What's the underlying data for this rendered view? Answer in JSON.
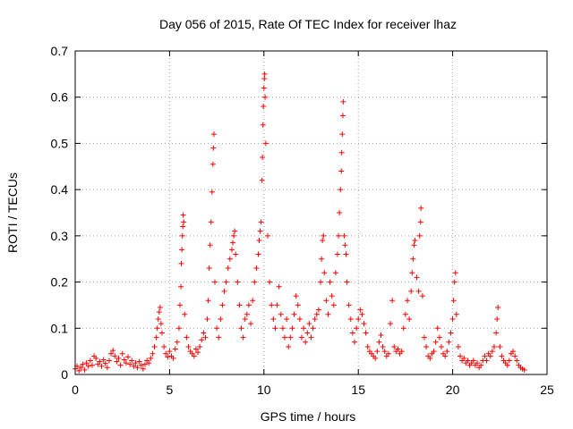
{
  "chart_data": {
    "type": "scatter",
    "title": "Day 056 of 2015, Rate Of TEC Index for receiver lhaz",
    "xlabel": "GPS time / hours",
    "ylabel": "ROTI / TECUs",
    "xlim": [
      0,
      25
    ],
    "ylim": [
      0,
      0.7
    ],
    "xticks": [
      0,
      5,
      10,
      15,
      20,
      25
    ],
    "xtick_labels": [
      "0",
      "5",
      "10",
      "15",
      "20",
      "25"
    ],
    "yticks": [
      0,
      0.1,
      0.2,
      0.3,
      0.4,
      0.5,
      0.6,
      0.7
    ],
    "ytick_labels": [
      "0",
      "0.1",
      "0.2",
      "0.3",
      "0.4",
      "0.5",
      "0.6",
      "0.7"
    ],
    "grid": true,
    "marker": "+",
    "color": "#ff0000",
    "series": [
      {
        "name": "ROTI",
        "points": [
          [
            0.0,
            0.012
          ],
          [
            0.1,
            0.018
          ],
          [
            0.2,
            0.008
          ],
          [
            0.3,
            0.015
          ],
          [
            0.4,
            0.022
          ],
          [
            0.5,
            0.01
          ],
          [
            0.6,
            0.025
          ],
          [
            0.7,
            0.018
          ],
          [
            0.8,
            0.03
          ],
          [
            0.9,
            0.02
          ],
          [
            1.0,
            0.04
          ],
          [
            1.1,
            0.035
          ],
          [
            1.2,
            0.022
          ],
          [
            1.3,
            0.028
          ],
          [
            1.4,
            0.018
          ],
          [
            1.5,
            0.032
          ],
          [
            1.6,
            0.024
          ],
          [
            1.7,
            0.015
          ],
          [
            1.8,
            0.03
          ],
          [
            1.9,
            0.045
          ],
          [
            2.0,
            0.052
          ],
          [
            2.1,
            0.04
          ],
          [
            2.2,
            0.028
          ],
          [
            2.3,
            0.035
          ],
          [
            2.4,
            0.02
          ],
          [
            2.5,
            0.045
          ],
          [
            2.6,
            0.032
          ],
          [
            2.7,
            0.025
          ],
          [
            2.8,
            0.038
          ],
          [
            2.9,
            0.022
          ],
          [
            3.0,
            0.03
          ],
          [
            3.1,
            0.018
          ],
          [
            3.2,
            0.025
          ],
          [
            3.3,
            0.015
          ],
          [
            3.4,
            0.028
          ],
          [
            3.5,
            0.02
          ],
          [
            3.6,
            0.012
          ],
          [
            3.7,
            0.022
          ],
          [
            3.8,
            0.03
          ],
          [
            3.9,
            0.025
          ],
          [
            4.0,
            0.035
          ],
          [
            4.1,
            0.045
          ],
          [
            4.2,
            0.06
          ],
          [
            4.3,
            0.08
          ],
          [
            4.35,
            0.1
          ],
          [
            4.4,
            0.12
          ],
          [
            4.45,
            0.135
          ],
          [
            4.5,
            0.145
          ],
          [
            4.55,
            0.11
          ],
          [
            4.6,
            0.09
          ],
          [
            4.7,
            0.06
          ],
          [
            4.8,
            0.045
          ],
          [
            4.9,
            0.038
          ],
          [
            5.0,
            0.05
          ],
          [
            5.1,
            0.04
          ],
          [
            5.2,
            0.035
          ],
          [
            5.3,
            0.055
          ],
          [
            5.4,
            0.07
          ],
          [
            5.5,
            0.1
          ],
          [
            5.55,
            0.15
          ],
          [
            5.6,
            0.19
          ],
          [
            5.62,
            0.24
          ],
          [
            5.65,
            0.27
          ],
          [
            5.68,
            0.3
          ],
          [
            5.7,
            0.32
          ],
          [
            5.72,
            0.345
          ],
          [
            5.75,
            0.33
          ],
          [
            5.8,
            0.13
          ],
          [
            5.9,
            0.08
          ],
          [
            6.0,
            0.06
          ],
          [
            6.1,
            0.05
          ],
          [
            6.2,
            0.045
          ],
          [
            6.3,
            0.04
          ],
          [
            6.4,
            0.055
          ],
          [
            6.5,
            0.048
          ],
          [
            6.6,
            0.06
          ],
          [
            6.7,
            0.075
          ],
          [
            6.8,
            0.09
          ],
          [
            6.9,
            0.08
          ],
          [
            7.0,
            0.12
          ],
          [
            7.05,
            0.16
          ],
          [
            7.1,
            0.23
          ],
          [
            7.15,
            0.28
          ],
          [
            7.2,
            0.33
          ],
          [
            7.25,
            0.395
          ],
          [
            7.3,
            0.455
          ],
          [
            7.32,
            0.49
          ],
          [
            7.35,
            0.52
          ],
          [
            7.4,
            0.2
          ],
          [
            7.5,
            0.1
          ],
          [
            7.6,
            0.08
          ],
          [
            7.7,
            0.12
          ],
          [
            7.8,
            0.15
          ],
          [
            7.9,
            0.18
          ],
          [
            8.0,
            0.2
          ],
          [
            8.1,
            0.23
          ],
          [
            8.2,
            0.25
          ],
          [
            8.3,
            0.27
          ],
          [
            8.35,
            0.285
          ],
          [
            8.4,
            0.3
          ],
          [
            8.45,
            0.31
          ],
          [
            8.5,
            0.26
          ],
          [
            8.6,
            0.2
          ],
          [
            8.7,
            0.15
          ],
          [
            8.8,
            0.1
          ],
          [
            8.9,
            0.08
          ],
          [
            9.0,
            0.12
          ],
          [
            9.1,
            0.13
          ],
          [
            9.2,
            0.15
          ],
          [
            9.3,
            0.11
          ],
          [
            9.4,
            0.16
          ],
          [
            9.5,
            0.2
          ],
          [
            9.6,
            0.23
          ],
          [
            9.7,
            0.26
          ],
          [
            9.75,
            0.29
          ],
          [
            9.8,
            0.31
          ],
          [
            9.85,
            0.33
          ],
          [
            9.9,
            0.42
          ],
          [
            9.92,
            0.47
          ],
          [
            9.95,
            0.54
          ],
          [
            9.97,
            0.58
          ],
          [
            10.0,
            0.62
          ],
          [
            10.02,
            0.64
          ],
          [
            10.04,
            0.65
          ],
          [
            10.06,
            0.6
          ],
          [
            10.1,
            0.5
          ],
          [
            10.2,
            0.3
          ],
          [
            10.3,
            0.2
          ],
          [
            10.4,
            0.15
          ],
          [
            10.5,
            0.12
          ],
          [
            10.6,
            0.1
          ],
          [
            10.7,
            0.15
          ],
          [
            10.8,
            0.19
          ],
          [
            10.9,
            0.13
          ],
          [
            11.0,
            0.1
          ],
          [
            11.1,
            0.08
          ],
          [
            11.2,
            0.12
          ],
          [
            11.3,
            0.06
          ],
          [
            11.4,
            0.08
          ],
          [
            11.5,
            0.1
          ],
          [
            11.6,
            0.13
          ],
          [
            11.7,
            0.17
          ],
          [
            11.8,
            0.15
          ],
          [
            11.9,
            0.12
          ],
          [
            12.0,
            0.08
          ],
          [
            12.1,
            0.1
          ],
          [
            12.2,
            0.07
          ],
          [
            12.3,
            0.09
          ],
          [
            12.4,
            0.11
          ],
          [
            12.5,
            0.08
          ],
          [
            12.6,
            0.1
          ],
          [
            12.7,
            0.12
          ],
          [
            12.8,
            0.13
          ],
          [
            12.9,
            0.14
          ],
          [
            13.0,
            0.2
          ],
          [
            13.05,
            0.25
          ],
          [
            13.1,
            0.29
          ],
          [
            13.15,
            0.3
          ],
          [
            13.2,
            0.22
          ],
          [
            13.3,
            0.16
          ],
          [
            13.4,
            0.13
          ],
          [
            13.5,
            0.2
          ],
          [
            13.6,
            0.17
          ],
          [
            13.7,
            0.15
          ],
          [
            13.8,
            0.22
          ],
          [
            13.9,
            0.26
          ],
          [
            13.95,
            0.3
          ],
          [
            14.0,
            0.35
          ],
          [
            14.05,
            0.4
          ],
          [
            14.1,
            0.44
          ],
          [
            14.12,
            0.48
          ],
          [
            14.15,
            0.52
          ],
          [
            14.18,
            0.56
          ],
          [
            14.2,
            0.59
          ],
          [
            14.25,
            0.3
          ],
          [
            14.3,
            0.28
          ],
          [
            14.35,
            0.26
          ],
          [
            14.4,
            0.2
          ],
          [
            14.5,
            0.15
          ],
          [
            14.6,
            0.12
          ],
          [
            14.7,
            0.09
          ],
          [
            14.8,
            0.07
          ],
          [
            14.9,
            0.1
          ],
          [
            15.0,
            0.12
          ],
          [
            15.1,
            0.14
          ],
          [
            15.2,
            0.13
          ],
          [
            15.3,
            0.11
          ],
          [
            15.4,
            0.09
          ],
          [
            15.5,
            0.06
          ],
          [
            15.6,
            0.05
          ],
          [
            15.7,
            0.045
          ],
          [
            15.8,
            0.04
          ],
          [
            15.9,
            0.035
          ],
          [
            16.0,
            0.05
          ],
          [
            16.1,
            0.07
          ],
          [
            16.2,
            0.085
          ],
          [
            16.3,
            0.06
          ],
          [
            16.4,
            0.05
          ],
          [
            16.5,
            0.04
          ],
          [
            16.6,
            0.045
          ],
          [
            16.7,
            0.11
          ],
          [
            16.8,
            0.16
          ],
          [
            16.9,
            0.06
          ],
          [
            17.0,
            0.05
          ],
          [
            17.1,
            0.055
          ],
          [
            17.2,
            0.045
          ],
          [
            17.3,
            0.05
          ],
          [
            17.4,
            0.1
          ],
          [
            17.5,
            0.13
          ],
          [
            17.6,
            0.16
          ],
          [
            17.7,
            0.12
          ],
          [
            17.8,
            0.18
          ],
          [
            17.85,
            0.22
          ],
          [
            17.9,
            0.25
          ],
          [
            17.95,
            0.28
          ],
          [
            18.0,
            0.29
          ],
          [
            18.1,
            0.21
          ],
          [
            18.2,
            0.18
          ],
          [
            18.25,
            0.3
          ],
          [
            18.3,
            0.33
          ],
          [
            18.32,
            0.36
          ],
          [
            18.4,
            0.17
          ],
          [
            18.5,
            0.08
          ],
          [
            18.6,
            0.06
          ],
          [
            18.7,
            0.04
          ],
          [
            18.8,
            0.035
          ],
          [
            18.9,
            0.045
          ],
          [
            19.0,
            0.05
          ],
          [
            19.1,
            0.07
          ],
          [
            19.2,
            0.1
          ],
          [
            19.3,
            0.08
          ],
          [
            19.4,
            0.06
          ],
          [
            19.5,
            0.045
          ],
          [
            19.6,
            0.04
          ],
          [
            19.7,
            0.05
          ],
          [
            19.8,
            0.07
          ],
          [
            19.9,
            0.09
          ],
          [
            20.0,
            0.12
          ],
          [
            20.05,
            0.16
          ],
          [
            20.1,
            0.2
          ],
          [
            20.15,
            0.22
          ],
          [
            20.2,
            0.13
          ],
          [
            20.3,
            0.06
          ],
          [
            20.4,
            0.04
          ],
          [
            20.5,
            0.03
          ],
          [
            20.6,
            0.035
          ],
          [
            20.7,
            0.025
          ],
          [
            20.8,
            0.03
          ],
          [
            20.9,
            0.02
          ],
          [
            21.0,
            0.025
          ],
          [
            21.1,
            0.03
          ],
          [
            21.2,
            0.02
          ],
          [
            21.3,
            0.025
          ],
          [
            21.4,
            0.015
          ],
          [
            21.5,
            0.02
          ],
          [
            21.6,
            0.03
          ],
          [
            21.7,
            0.04
          ],
          [
            21.8,
            0.03
          ],
          [
            21.9,
            0.045
          ],
          [
            22.0,
            0.04
          ],
          [
            22.1,
            0.05
          ],
          [
            22.2,
            0.06
          ],
          [
            22.3,
            0.09
          ],
          [
            22.35,
            0.12
          ],
          [
            22.4,
            0.145
          ],
          [
            22.5,
            0.06
          ],
          [
            22.6,
            0.04
          ],
          [
            22.7,
            0.03
          ],
          [
            22.8,
            0.025
          ],
          [
            22.9,
            0.02
          ],
          [
            23.0,
            0.03
          ],
          [
            23.1,
            0.045
          ],
          [
            23.2,
            0.05
          ],
          [
            23.3,
            0.04
          ],
          [
            23.4,
            0.03
          ],
          [
            23.5,
            0.02
          ],
          [
            23.6,
            0.015
          ],
          [
            23.7,
            0.012
          ],
          [
            23.8,
            0.01
          ]
        ]
      }
    ]
  }
}
